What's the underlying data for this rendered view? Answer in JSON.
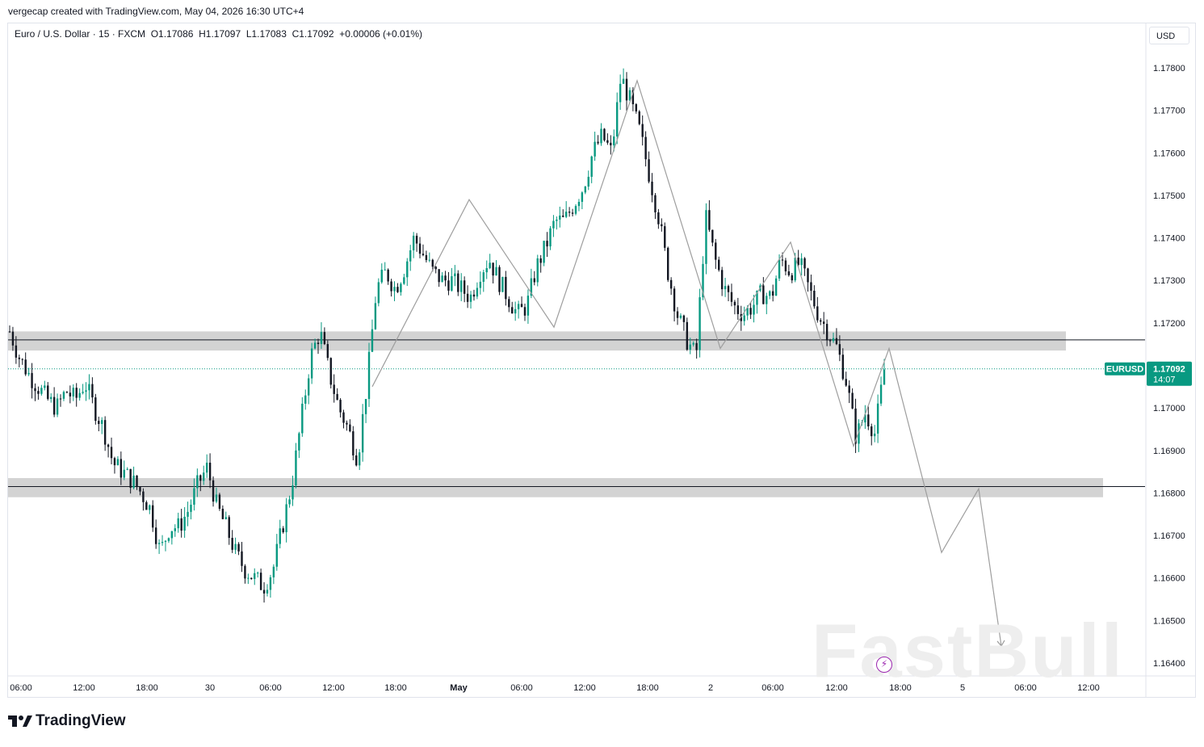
{
  "header": {
    "attribution": "vergecap created with TradingView.com, May 04, 2026 16:30 UTC+4"
  },
  "symbol_bar": {
    "name": "Euro / U.S. Dollar · 15 · FXCM",
    "open": "O1.17086",
    "high": "H1.17097",
    "low": "L1.17083",
    "close": "C1.17092",
    "change": "+0.00006 (+0.01%)"
  },
  "currency_button": "USD",
  "price_tag": {
    "ticker": "EURUSD",
    "price": "1.17092",
    "countdown": "14:07"
  },
  "footer": {
    "brand": "TradingView"
  },
  "watermark": "FastBull",
  "icons": {
    "bolt": "lightning-bolt-icon",
    "logo": "tradingview-logo-icon"
  },
  "colors": {
    "up": "#089981",
    "down": "#131722",
    "zone": "#d1d1d1",
    "projection": "#9e9e9e",
    "last_price": "#089981"
  },
  "chart_data": {
    "type": "candlestick",
    "symbol": "EURUSD",
    "timeframe": "15",
    "ylim": [
      1.1638,
      1.1791
    ],
    "y_ticks": [
      "1.17800",
      "1.17700",
      "1.17600",
      "1.17500",
      "1.17400",
      "1.17300",
      "1.17200",
      "1.17100",
      "1.17000",
      "1.16900",
      "1.16800",
      "1.16700",
      "1.16600",
      "1.16500",
      "1.16400"
    ],
    "x_ticks": [
      "06:00",
      "12:00",
      "18:00",
      "30",
      "06:00",
      "12:00",
      "18:00",
      "May",
      "06:00",
      "12:00",
      "18:00",
      "2",
      "06:00",
      "12:00",
      "18:00",
      "5",
      "06:00",
      "12:00"
    ],
    "last_price": 1.17092,
    "price_path": [
      1.1718,
      1.1712,
      1.1708,
      1.1705,
      1.1702,
      1.17,
      1.1704,
      1.1702,
      1.1706,
      1.17,
      1.1695,
      1.1687,
      1.1685,
      1.1683,
      1.168,
      1.1676,
      1.1666,
      1.1672,
      1.1672,
      1.1676,
      1.1682,
      1.1686,
      1.1677,
      1.1672,
      1.1666,
      1.1662,
      1.166,
      1.1658,
      1.1662,
      1.1672,
      1.1682,
      1.1697,
      1.1712,
      1.1718,
      1.1708,
      1.17,
      1.1695,
      1.1688,
      1.1706,
      1.1728,
      1.1732,
      1.1728,
      1.1733,
      1.174,
      1.1736,
      1.1732,
      1.173,
      1.173,
      1.1728,
      1.1726,
      1.1732,
      1.1735,
      1.173,
      1.1726,
      1.1722,
      1.1724,
      1.1733,
      1.1738,
      1.1744,
      1.1744,
      1.1748,
      1.1752,
      1.176,
      1.1764,
      1.176,
      1.1778,
      1.1772,
      1.1765,
      1.1755,
      1.1745,
      1.1732,
      1.1722,
      1.1716,
      1.1712,
      1.1745,
      1.1735,
      1.1728,
      1.1724,
      1.1722,
      1.1724,
      1.1727,
      1.1726,
      1.1735,
      1.1732,
      1.1734,
      1.1728,
      1.1722,
      1.1718,
      1.1714,
      1.1706,
      1.1693,
      1.1699,
      1.1694,
      1.1709
    ],
    "support_resistance_zones": [
      {
        "from": 1.17135,
        "to": 1.1718,
        "line": 1.1716
      },
      {
        "from": 1.1679,
        "to": 1.16835,
        "line": 1.16815
      }
    ],
    "projection_path": [
      {
        "x": "Apr 30 12:00",
        "y": 1.1705
      },
      {
        "x": "Apr 30 15:00",
        "y": 1.1749
      },
      {
        "x": "May 1 09:00",
        "y": 1.1719
      },
      {
        "x": "May 1 16:30",
        "y": 1.1777
      },
      {
        "x": "May 2 02:15",
        "y": 1.1714
      },
      {
        "x": "May 2 08:30",
        "y": 1.1739
      },
      {
        "x": "May 2 14:00",
        "y": 1.1691
      },
      {
        "x": "May 4 16:30",
        "y": 1.1714
      },
      {
        "x": "May 4 18:45",
        "y": 1.1666
      },
      {
        "x": "May 4 21:00",
        "y": 1.1681
      },
      {
        "x": "May 4 22:00",
        "y": 1.1644
      }
    ],
    "grid": false,
    "legend": "none"
  }
}
